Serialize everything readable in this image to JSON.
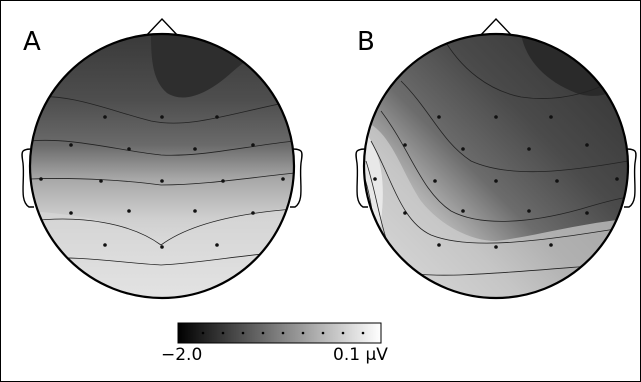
{
  "figure": {
    "panels": [
      {
        "label": "A"
      },
      {
        "label": "B"
      }
    ],
    "colorbar": {
      "min_label": "−2.0",
      "max_label": "0.1 µV",
      "min_value": -2.0,
      "max_value": 0.1,
      "unit": "µV",
      "gradient_colors": [
        "#000000",
        "#1a1a1a",
        "#333333",
        "#4d4d4d",
        "#666666",
        "#808080",
        "#999999",
        "#b3b3b3",
        "#cccccc",
        "#e6e6e6",
        "#ffffff"
      ]
    }
  }
}
